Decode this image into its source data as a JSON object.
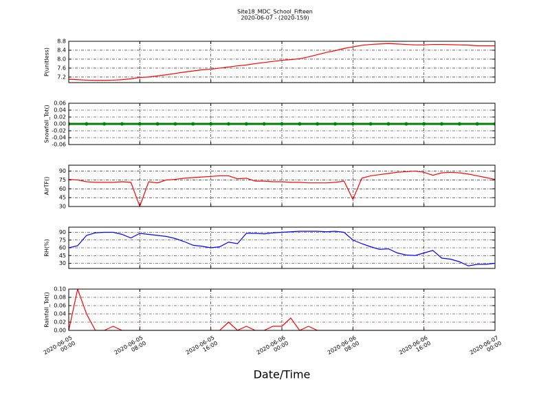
{
  "chart_data": [
    {
      "type": "line",
      "title": "Site18_MDC_School_Fifteen",
      "subtitle": "2020-06-07 - (2020-159)",
      "ylabel": "P(unitless)",
      "color": "#ff0000",
      "grid": true,
      "xlim": [
        "2020-06-05 00:00",
        "2020-06-07 00:00"
      ],
      "xticks": [
        "2020-06-05 00:00",
        "2020-06-05 08:00",
        "2020-06-05 16:00",
        "2020-06-06 00:00",
        "2020-06-06 08:00",
        "2020-06-06 16:00",
        "2020-06-07 00:00"
      ],
      "ylim": [
        6.95,
        8.8
      ],
      "yticks": [
        7.2,
        7.6,
        {
          "value": 8,
          "label": "8.0"
        },
        8.4,
        8.8
      ],
      "x": [
        "2020-06-05 00:00",
        "2020-06-05 01:00",
        "2020-06-05 02:00",
        "2020-06-05 03:00",
        "2020-06-05 04:00",
        "2020-06-05 05:00",
        "2020-06-05 06:00",
        "2020-06-05 07:00",
        "2020-06-05 08:00",
        "2020-06-05 09:00",
        "2020-06-05 10:00",
        "2020-06-05 11:00",
        "2020-06-05 12:00",
        "2020-06-05 13:00",
        "2020-06-05 14:00",
        "2020-06-05 15:00",
        "2020-06-05 16:00",
        "2020-06-05 17:00",
        "2020-06-05 18:00",
        "2020-06-05 19:00",
        "2020-06-05 20:00",
        "2020-06-05 21:00",
        "2020-06-05 22:00",
        "2020-06-05 23:00",
        "2020-06-06 00:00",
        "2020-06-06 01:00",
        "2020-06-06 02:00",
        "2020-06-06 03:00",
        "2020-06-06 04:00",
        "2020-06-06 05:00",
        "2020-06-06 06:00",
        "2020-06-06 07:00",
        "2020-06-06 08:00",
        "2020-06-06 09:00",
        "2020-06-06 10:00",
        "2020-06-06 11:00",
        "2020-06-06 12:00",
        "2020-06-06 13:00",
        "2020-06-06 14:00",
        "2020-06-06 15:00",
        "2020-06-06 16:00",
        "2020-06-06 17:00",
        "2020-06-06 18:00",
        "2020-06-06 19:00",
        "2020-06-06 20:00",
        "2020-06-06 21:00",
        "2020-06-06 22:00",
        "2020-06-06 23:00",
        "2020-06-07 00:00"
      ],
      "values": [
        7.1,
        7.08,
        7.06,
        7.05,
        7.05,
        7.06,
        7.08,
        7.12,
        7.18,
        7.2,
        7.25,
        7.3,
        7.36,
        7.42,
        7.47,
        7.52,
        7.55,
        7.6,
        7.65,
        7.7,
        7.74,
        7.8,
        7.85,
        7.9,
        7.95,
        7.98,
        8.02,
        8.1,
        8.2,
        8.3,
        8.38,
        8.48,
        8.55,
        8.62,
        8.66,
        8.68,
        8.7,
        8.68,
        8.66,
        8.64,
        8.64,
        8.66,
        8.66,
        8.65,
        8.64,
        8.63,
        8.6,
        8.6,
        8.6
      ]
    },
    {
      "type": "line",
      "ylabel": "Snowfall_Tot()",
      "color": "#008000",
      "marker": true,
      "grid": true,
      "xlim": [
        "2020-06-05 00:00",
        "2020-06-07 00:00"
      ],
      "xticks": [
        "2020-06-05 00:00",
        "2020-06-05 08:00",
        "2020-06-05 16:00",
        "2020-06-06 00:00",
        "2020-06-06 08:00",
        "2020-06-06 16:00",
        "2020-06-07 00:00"
      ],
      "ylim": [
        -0.06,
        0.06
      ],
      "yticks": [
        -0.06,
        -0.04,
        -0.02,
        {
          "value": 0,
          "label": "0.00"
        },
        0.02,
        0.04,
        0.06
      ],
      "x": [
        "2020-06-05 00:00",
        "2020-06-05 02:00",
        "2020-06-05 04:00",
        "2020-06-05 06:00",
        "2020-06-05 08:00",
        "2020-06-05 10:00",
        "2020-06-05 12:00",
        "2020-06-05 14:00",
        "2020-06-05 16:00",
        "2020-06-05 18:00",
        "2020-06-05 20:00",
        "2020-06-05 22:00",
        "2020-06-06 00:00",
        "2020-06-06 02:00",
        "2020-06-06 04:00",
        "2020-06-06 06:00",
        "2020-06-06 08:00",
        "2020-06-06 10:00",
        "2020-06-06 12:00",
        "2020-06-06 14:00",
        "2020-06-06 16:00",
        "2020-06-06 18:00",
        "2020-06-06 20:00",
        "2020-06-06 22:00",
        "2020-06-07 00:00"
      ],
      "values": [
        0,
        0,
        0,
        0,
        0,
        0,
        0,
        0,
        0,
        0,
        0,
        0,
        0,
        0,
        0,
        0,
        0,
        0,
        0,
        0,
        0,
        0,
        0,
        0,
        0
      ]
    },
    {
      "type": "line",
      "ylabel": "AirTF()",
      "color": "#ff0000",
      "grid": true,
      "xlim": [
        "2020-06-05 00:00",
        "2020-06-07 00:00"
      ],
      "xticks": [
        "2020-06-05 00:00",
        "2020-06-05 08:00",
        "2020-06-05 16:00",
        "2020-06-06 00:00",
        "2020-06-06 08:00",
        "2020-06-06 16:00",
        "2020-06-07 00:00"
      ],
      "ylim": [
        30,
        100
      ],
      "yticks": [
        30,
        45,
        60,
        75,
        90
      ],
      "x": [
        "2020-06-05 00:00",
        "2020-06-05 01:00",
        "2020-06-05 02:00",
        "2020-06-05 03:00",
        "2020-06-05 04:00",
        "2020-06-05 05:00",
        "2020-06-05 06:00",
        "2020-06-05 07:00",
        "2020-06-05 08:00",
        "2020-06-05 09:00",
        "2020-06-05 10:00",
        "2020-06-05 11:00",
        "2020-06-05 12:00",
        "2020-06-05 13:00",
        "2020-06-05 14:00",
        "2020-06-05 15:00",
        "2020-06-05 16:00",
        "2020-06-05 17:00",
        "2020-06-05 18:00",
        "2020-06-05 19:00",
        "2020-06-05 20:00",
        "2020-06-05 21:00",
        "2020-06-05 22:00",
        "2020-06-05 23:00",
        "2020-06-06 00:00",
        "2020-06-06 01:00",
        "2020-06-06 02:00",
        "2020-06-06 03:00",
        "2020-06-06 04:00",
        "2020-06-06 05:00",
        "2020-06-06 06:00",
        "2020-06-06 07:00",
        "2020-06-06 08:00",
        "2020-06-06 09:00",
        "2020-06-06 10:00",
        "2020-06-06 11:00",
        "2020-06-06 12:00",
        "2020-06-06 13:00",
        "2020-06-06 14:00",
        "2020-06-06 15:00",
        "2020-06-06 16:00",
        "2020-06-06 17:00",
        "2020-06-06 18:00",
        "2020-06-06 19:00",
        "2020-06-06 20:00",
        "2020-06-06 21:00",
        "2020-06-06 22:00",
        "2020-06-06 23:00",
        "2020-06-07 00:00"
      ],
      "values": [
        76,
        75,
        72,
        71,
        71,
        71,
        72,
        71,
        30,
        72,
        70,
        75,
        76,
        78,
        79,
        80,
        81,
        82,
        82,
        77,
        78,
        73,
        73,
        72,
        72,
        71,
        71,
        70,
        70,
        70,
        71,
        73,
        42,
        78,
        82,
        84,
        86,
        88,
        89,
        90,
        88,
        83,
        87,
        88,
        87,
        85,
        82,
        79,
        76
      ]
    },
    {
      "type": "line",
      "ylabel": "RH(%)",
      "color": "#0000ff",
      "grid": true,
      "xlim": [
        "2020-06-05 00:00",
        "2020-06-07 00:00"
      ],
      "xticks": [
        "2020-06-05 00:00",
        "2020-06-05 08:00",
        "2020-06-05 16:00",
        "2020-06-06 00:00",
        "2020-06-06 08:00",
        "2020-06-06 16:00",
        "2020-06-07 00:00"
      ],
      "ylim": [
        20,
        100
      ],
      "yticks": [
        30,
        45,
        60,
        75,
        90
      ],
      "x": [
        "2020-06-05 00:00",
        "2020-06-05 01:00",
        "2020-06-05 02:00",
        "2020-06-05 03:00",
        "2020-06-05 04:00",
        "2020-06-05 05:00",
        "2020-06-05 06:00",
        "2020-06-05 07:00",
        "2020-06-05 08:00",
        "2020-06-05 09:00",
        "2020-06-05 10:00",
        "2020-06-05 11:00",
        "2020-06-05 12:00",
        "2020-06-05 13:00",
        "2020-06-05 14:00",
        "2020-06-05 15:00",
        "2020-06-05 16:00",
        "2020-06-05 17:00",
        "2020-06-05 18:00",
        "2020-06-05 19:00",
        "2020-06-05 20:00",
        "2020-06-05 21:00",
        "2020-06-05 22:00",
        "2020-06-05 23:00",
        "2020-06-06 00:00",
        "2020-06-06 01:00",
        "2020-06-06 02:00",
        "2020-06-06 03:00",
        "2020-06-06 04:00",
        "2020-06-06 05:00",
        "2020-06-06 06:00",
        "2020-06-06 07:00",
        "2020-06-06 08:00",
        "2020-06-06 09:00",
        "2020-06-06 10:00",
        "2020-06-06 11:00",
        "2020-06-06 12:00",
        "2020-06-06 13:00",
        "2020-06-06 14:00",
        "2020-06-06 15:00",
        "2020-06-06 16:00",
        "2020-06-06 17:00",
        "2020-06-06 18:00",
        "2020-06-06 19:00",
        "2020-06-06 20:00",
        "2020-06-06 21:00",
        "2020-06-06 22:00",
        "2020-06-06 23:00",
        "2020-06-07 00:00"
      ],
      "values": [
        60,
        64,
        84,
        89,
        90,
        90,
        86,
        79,
        88,
        86,
        84,
        82,
        78,
        72,
        65,
        63,
        60,
        62,
        71,
        68,
        88,
        88,
        87,
        89,
        90,
        91,
        92,
        92,
        92,
        91,
        92,
        90,
        75,
        68,
        62,
        57,
        58,
        50,
        46,
        45,
        50,
        55,
        40,
        38,
        33,
        25,
        28,
        28,
        30
      ]
    },
    {
      "type": "line",
      "ylabel": "Rainfall_Tot()",
      "xlabel": "Date/Time",
      "color": "#ff0000",
      "grid": true,
      "xlim": [
        "2020-06-05 00:00",
        "2020-06-07 00:00"
      ],
      "xticks": [
        "2020-06-05 00:00",
        "2020-06-05 08:00",
        "2020-06-05 16:00",
        "2020-06-06 00:00",
        "2020-06-06 08:00",
        "2020-06-06 16:00",
        "2020-06-07 00:00"
      ],
      "ylim": [
        0,
        0.1
      ],
      "yticks": [
        {
          "value": 0,
          "label": "0.00"
        },
        0.02,
        0.04,
        0.06,
        0.08,
        {
          "value": 0.1,
          "label": "0.10"
        }
      ],
      "x": [
        "2020-06-05 00:00",
        "2020-06-05 01:00",
        "2020-06-05 02:00",
        "2020-06-05 03:00",
        "2020-06-05 04:00",
        "2020-06-05 05:00",
        "2020-06-05 06:00",
        "2020-06-05 07:00",
        "2020-06-05 08:00",
        "2020-06-05 09:00",
        "2020-06-05 10:00",
        "2020-06-05 11:00",
        "2020-06-05 12:00",
        "2020-06-05 13:00",
        "2020-06-05 14:00",
        "2020-06-05 15:00",
        "2020-06-05 16:00",
        "2020-06-05 17:00",
        "2020-06-05 18:00",
        "2020-06-05 19:00",
        "2020-06-05 20:00",
        "2020-06-05 21:00",
        "2020-06-05 22:00",
        "2020-06-05 23:00",
        "2020-06-06 00:00",
        "2020-06-06 01:00",
        "2020-06-06 02:00",
        "2020-06-06 03:00",
        "2020-06-06 04:00",
        "2020-06-06 05:00",
        "2020-06-06 06:00",
        "2020-06-06 07:00",
        "2020-06-06 08:00",
        "2020-06-06 09:00",
        "2020-06-06 10:00",
        "2020-06-06 11:00",
        "2020-06-06 12:00",
        "2020-06-06 13:00",
        "2020-06-06 14:00",
        "2020-06-06 15:00",
        "2020-06-06 16:00",
        "2020-06-06 17:00",
        "2020-06-06 18:00",
        "2020-06-06 19:00",
        "2020-06-06 20:00",
        "2020-06-06 21:00",
        "2020-06-06 22:00",
        "2020-06-06 23:00",
        "2020-06-07 00:00"
      ],
      "values": [
        0,
        0.1,
        0.04,
        0,
        0,
        0.01,
        0,
        0,
        0,
        0,
        0,
        0,
        0,
        0,
        0,
        0,
        0,
        0,
        0.02,
        0,
        0.01,
        0,
        0,
        0.01,
        0.01,
        0.03,
        0,
        0.01,
        0,
        0,
        0,
        0,
        0,
        0,
        0,
        0,
        0,
        0,
        0,
        0,
        0,
        0,
        0,
        0,
        0,
        0,
        0,
        0,
        0
      ]
    }
  ]
}
